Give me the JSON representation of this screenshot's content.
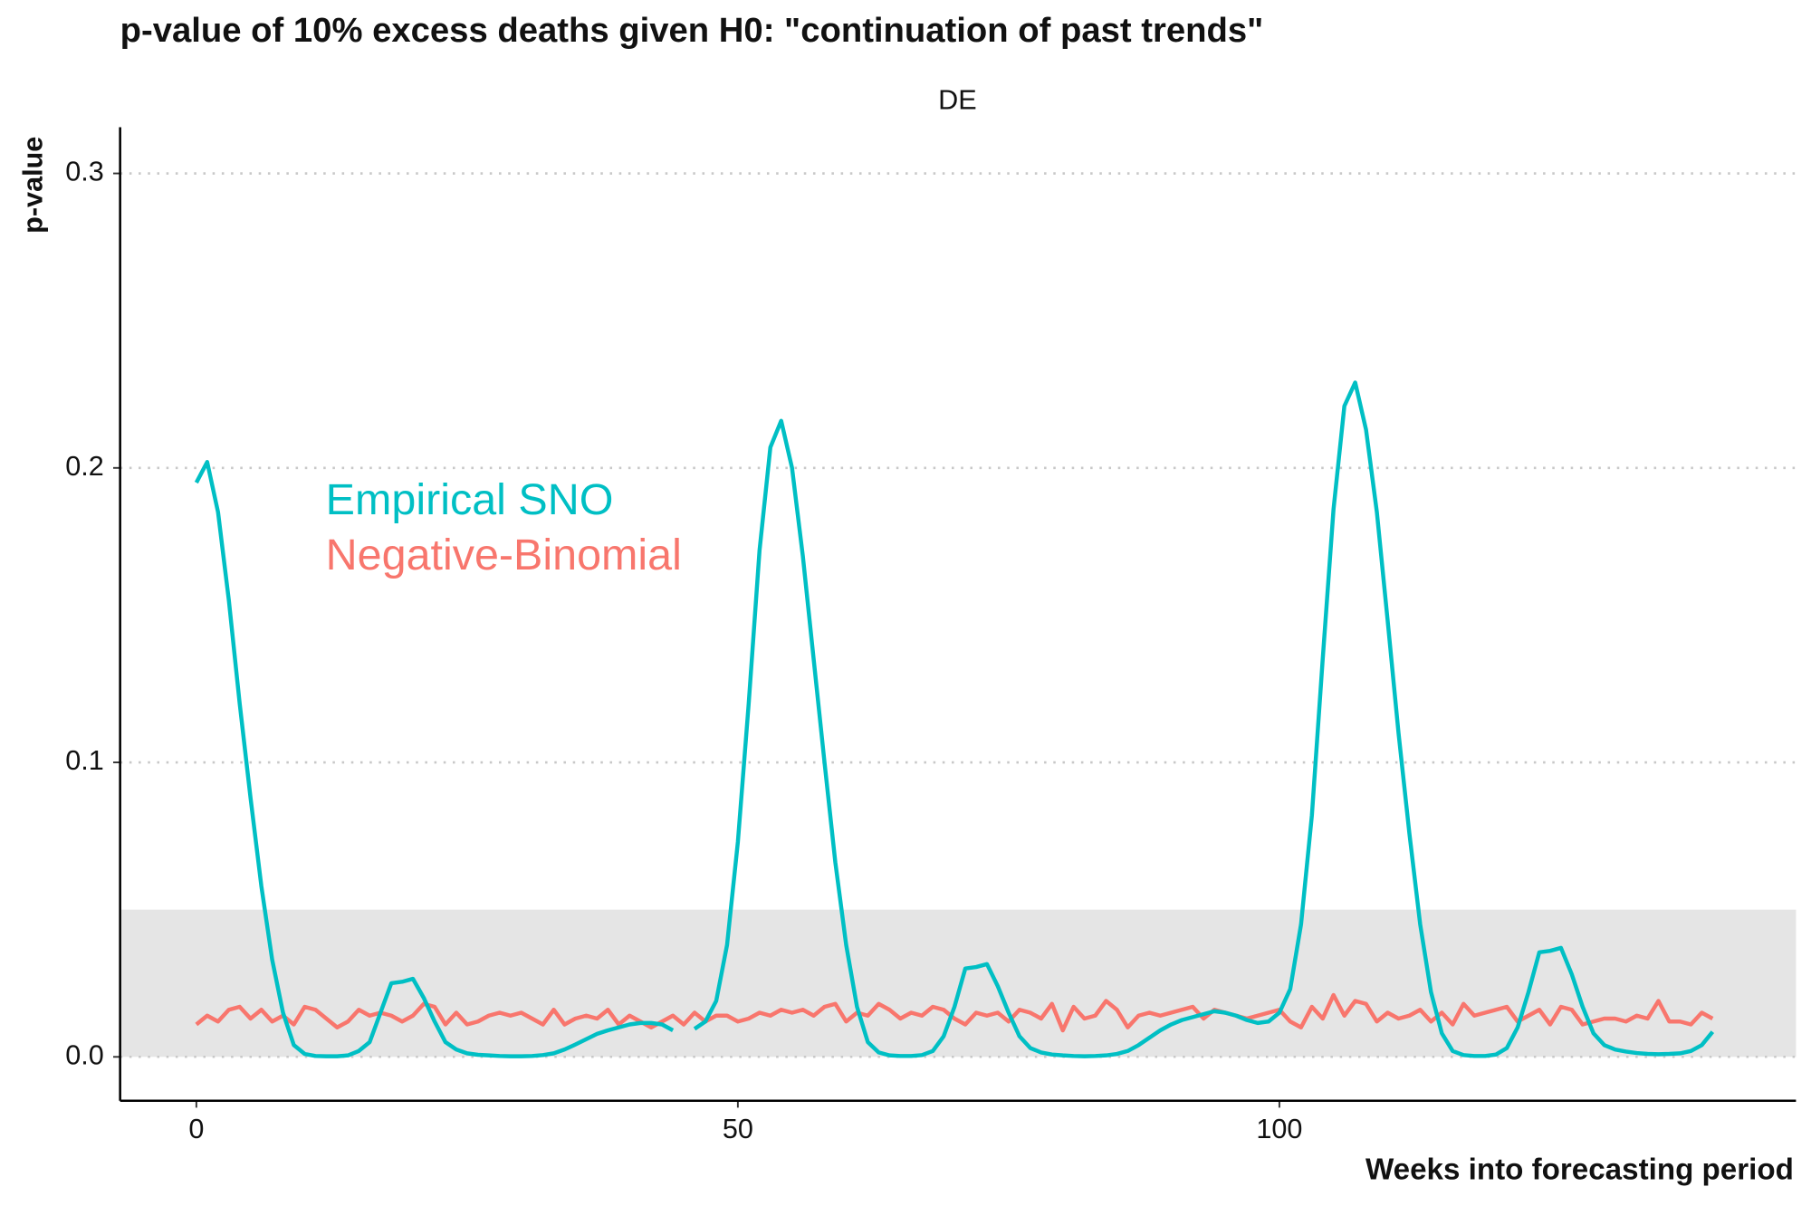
{
  "chart_data": {
    "type": "line",
    "title": "p-value of 10% excess deaths given H0: \"continuation of past trends\"",
    "panel_title": "DE",
    "xlabel": "Weeks into forecasting period",
    "ylabel": "p-value",
    "xlim": [
      -7.04,
      147.7
    ],
    "ylim": [
      -0.0149,
      0.3157
    ],
    "xticks": [
      0,
      50,
      100
    ],
    "yticks": [
      {
        "value": 0,
        "label": "0.0"
      },
      0.1,
      0.2,
      0.3
    ],
    "grid": true,
    "band": [
      0,
      0.05
    ],
    "band_color": "#e5e5e5",
    "x": [
      0,
      1,
      2,
      3,
      4,
      5,
      6,
      7,
      8,
      9,
      10,
      11,
      12,
      13,
      14,
      15,
      16,
      17,
      18,
      19,
      20,
      21,
      22,
      23,
      24,
      25,
      26,
      27,
      28,
      29,
      30,
      31,
      32,
      33,
      34,
      35,
      36,
      37,
      38,
      39,
      40,
      41,
      42,
      43,
      44,
      45,
      46,
      47,
      48,
      49,
      50,
      51,
      52,
      53,
      54,
      55,
      56,
      57,
      58,
      59,
      60,
      61,
      62,
      63,
      64,
      65,
      66,
      67,
      68,
      69,
      70,
      71,
      72,
      73,
      74,
      75,
      76,
      77,
      78,
      79,
      80,
      81,
      82,
      83,
      84,
      85,
      86,
      87,
      88,
      89,
      90,
      91,
      92,
      93,
      94,
      95,
      96,
      97,
      98,
      99,
      100,
      101,
      102,
      103,
      104,
      105,
      106,
      107,
      108,
      109,
      110,
      111,
      112,
      113,
      114,
      115,
      116,
      117,
      118,
      119,
      120,
      121,
      122,
      123,
      124,
      125,
      126,
      127,
      128,
      129,
      130,
      131,
      132,
      133,
      134,
      135,
      136,
      137,
      138,
      139,
      140
    ],
    "series": [
      {
        "name": "Empirical SNO",
        "color": "#00BFC4",
        "values": [
          0.195,
          0.202,
          0.185,
          0.155,
          0.12,
          0.088,
          0.058,
          0.033,
          0.015,
          0.004,
          0.001,
          0.0003,
          0.0002,
          0.0002,
          0.0005,
          0.002,
          0.005,
          0.015,
          0.025,
          0.0255,
          0.0265,
          0.02,
          0.012,
          0.005,
          0.0025,
          0.0012,
          0.0007,
          0.0005,
          0.0003,
          0.0002,
          0.0002,
          0.0003,
          0.0006,
          0.0012,
          0.0025,
          0.0042,
          0.006,
          0.0078,
          0.009,
          0.01,
          0.011,
          0.0115,
          0.0115,
          0.011,
          0.009,
          null,
          0.0095,
          0.012,
          0.019,
          0.038,
          0.073,
          0.12,
          0.172,
          0.207,
          0.216,
          0.2,
          0.17,
          0.135,
          0.1,
          0.066,
          0.038,
          0.017,
          0.005,
          0.0015,
          0.0005,
          0.0003,
          0.0003,
          0.0006,
          0.002,
          0.007,
          0.017,
          0.03,
          0.0305,
          0.0315,
          0.024,
          0.015,
          0.007,
          0.003,
          0.0015,
          0.0008,
          0.0005,
          0.0003,
          0.0002,
          0.0003,
          0.0005,
          0.001,
          0.002,
          0.004,
          0.0065,
          0.009,
          0.011,
          0.0125,
          0.0135,
          0.0145,
          0.0155,
          0.015,
          0.014,
          0.0125,
          0.0115,
          0.012,
          0.015,
          0.023,
          0.045,
          0.082,
          0.135,
          0.186,
          0.221,
          0.229,
          0.213,
          0.185,
          0.148,
          0.11,
          0.076,
          0.045,
          0.022,
          0.008,
          0.002,
          0.0006,
          0.0003,
          0.0003,
          0.0008,
          0.003,
          0.01,
          0.022,
          0.0355,
          0.036,
          0.037,
          0.028,
          0.017,
          0.008,
          0.004,
          0.0025,
          0.0018,
          0.0013,
          0.001,
          0.0009,
          0.001,
          0.0012,
          0.002,
          0.004,
          0.0085
        ]
      },
      {
        "name": "Negative-Binomial",
        "color": "#F8766D",
        "values": [
          0.011,
          0.014,
          0.012,
          0.016,
          0.017,
          0.013,
          0.016,
          0.012,
          0.014,
          0.011,
          0.017,
          0.016,
          0.013,
          0.01,
          0.012,
          0.016,
          0.014,
          0.015,
          0.014,
          0.012,
          0.014,
          0.018,
          0.017,
          0.011,
          0.015,
          0.011,
          0.012,
          0.014,
          0.015,
          0.014,
          0.015,
          0.013,
          0.011,
          0.016,
          0.011,
          0.013,
          0.014,
          0.013,
          0.016,
          0.011,
          0.014,
          0.012,
          0.01,
          0.012,
          0.014,
          0.011,
          0.015,
          0.012,
          0.014,
          0.014,
          0.012,
          0.013,
          0.015,
          0.014,
          0.016,
          0.015,
          0.016,
          0.014,
          0.017,
          0.018,
          0.012,
          0.015,
          0.014,
          0.018,
          0.016,
          0.013,
          0.015,
          0.014,
          0.017,
          0.016,
          0.013,
          0.011,
          0.015,
          0.014,
          0.015,
          0.012,
          0.016,
          0.015,
          0.013,
          0.018,
          0.009,
          0.017,
          0.013,
          0.014,
          0.019,
          0.016,
          0.01,
          0.014,
          0.015,
          0.014,
          0.015,
          0.016,
          0.017,
          0.013,
          0.016,
          0.015,
          0.014,
          0.013,
          0.014,
          0.015,
          0.016,
          0.012,
          0.01,
          0.017,
          0.013,
          0.021,
          0.014,
          0.019,
          0.018,
          0.012,
          0.015,
          0.013,
          0.014,
          0.016,
          0.012,
          0.015,
          0.011,
          0.018,
          0.014,
          0.015,
          0.016,
          0.017,
          0.012,
          0.014,
          0.016,
          0.011,
          0.017,
          0.016,
          0.011,
          0.012,
          0.013,
          0.013,
          0.012,
          0.014,
          0.013,
          0.019,
          0.012,
          0.012,
          0.011,
          0.015,
          0.013
        ]
      }
    ]
  }
}
